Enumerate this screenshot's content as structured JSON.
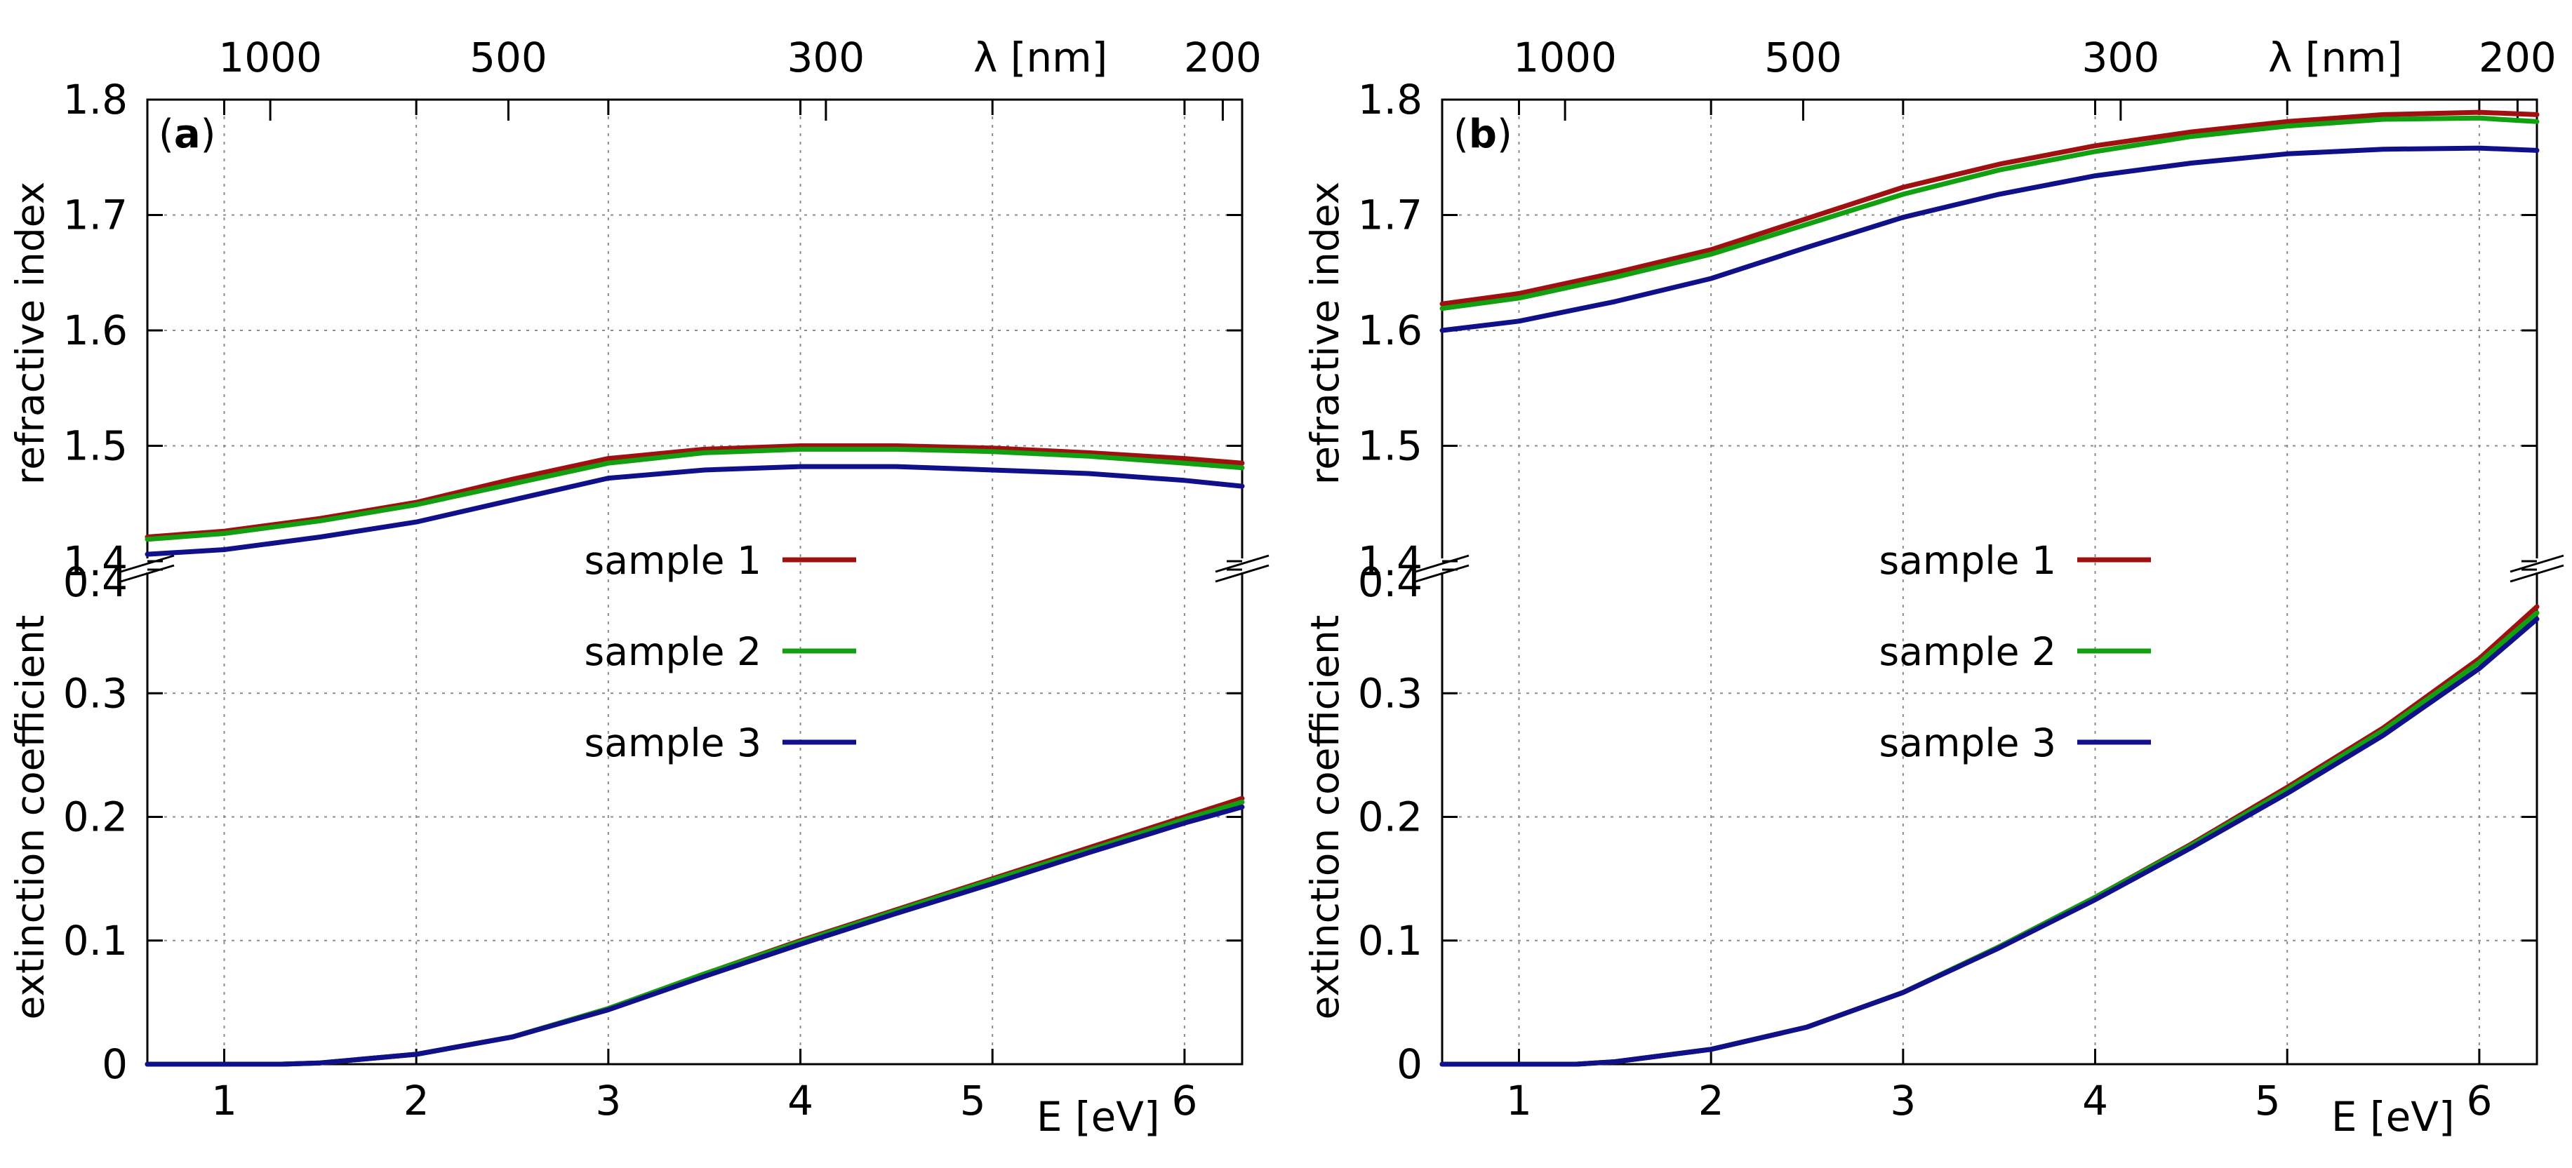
{
  "chart_data": [
    {
      "type": "line",
      "panel_label": "a",
      "xlabel": "E [eV]",
      "top_xlabel": "λ [nm]",
      "ylabel_upper": "refractive index",
      "ylabel_lower": "extinction coefficient",
      "xlim": [
        0.6,
        6.3
      ],
      "ylim_upper": [
        1.4,
        1.8
      ],
      "ylim_lower": [
        0,
        0.4
      ],
      "x_ticks": [
        "1",
        "2",
        "3",
        "4",
        "5",
        "6"
      ],
      "top_ticks": [
        "1000",
        "500",
        "300",
        "200"
      ],
      "y_ticks_upper": [
        "1.4",
        "1.5",
        "1.6",
        "1.7",
        "1.8"
      ],
      "y_ticks_lower": [
        "0",
        "0.1",
        "0.2",
        "0.3",
        "0.4"
      ],
      "legend": [
        "sample 1",
        "sample 2",
        "sample 3"
      ],
      "series_n": [
        {
          "name": "sample 1",
          "color": "#a01010",
          "x": [
            0.6,
            1,
            1.5,
            2,
            2.5,
            3,
            3.5,
            4,
            4.5,
            5,
            5.5,
            6,
            6.3
          ],
          "values": [
            1.421,
            1.426,
            1.437,
            1.451,
            1.471,
            1.489,
            1.497,
            1.5,
            1.5,
            1.498,
            1.494,
            1.489,
            1.485
          ]
        },
        {
          "name": "sample 2",
          "color": "#10a010",
          "x": [
            0.6,
            1,
            1.5,
            2,
            2.5,
            3,
            3.5,
            4,
            4.5,
            5,
            5.5,
            6,
            6.3
          ],
          "values": [
            1.419,
            1.424,
            1.435,
            1.449,
            1.467,
            1.485,
            1.494,
            1.497,
            1.497,
            1.495,
            1.491,
            1.485,
            1.481
          ]
        },
        {
          "name": "sample 3",
          "color": "#10108a",
          "x": [
            0.6,
            1,
            1.5,
            2,
            2.5,
            3,
            3.5,
            4,
            4.5,
            5,
            5.5,
            6,
            6.3
          ],
          "values": [
            1.406,
            1.41,
            1.421,
            1.434,
            1.453,
            1.472,
            1.479,
            1.482,
            1.482,
            1.479,
            1.476,
            1.47,
            1.465
          ]
        }
      ],
      "series_k": [
        {
          "name": "sample 1",
          "color": "#a01010",
          "x": [
            0.6,
            1,
            1.3,
            1.5,
            2,
            2.5,
            3,
            3.5,
            4,
            4.5,
            5,
            5.5,
            6,
            6.3
          ],
          "values": [
            0,
            0,
            0,
            0.001,
            0.008,
            0.022,
            0.045,
            0.073,
            0.1,
            0.125,
            0.15,
            0.175,
            0.2,
            0.215
          ]
        },
        {
          "name": "sample 2",
          "color": "#10a010",
          "x": [
            0.6,
            1,
            1.3,
            1.5,
            2,
            2.5,
            3,
            3.5,
            4,
            4.5,
            5,
            5.5,
            6,
            6.3
          ],
          "values": [
            0,
            0,
            0,
            0.001,
            0.008,
            0.022,
            0.045,
            0.073,
            0.099,
            0.124,
            0.149,
            0.173,
            0.198,
            0.212
          ]
        },
        {
          "name": "sample 3",
          "color": "#10108a",
          "x": [
            0.6,
            1,
            1.3,
            1.5,
            2,
            2.5,
            3,
            3.5,
            4,
            4.5,
            5,
            5.5,
            6,
            6.3
          ],
          "values": [
            0,
            0,
            0,
            0.001,
            0.008,
            0.022,
            0.044,
            0.071,
            0.097,
            0.122,
            0.146,
            0.171,
            0.195,
            0.208
          ]
        }
      ]
    },
    {
      "type": "line",
      "panel_label": "b",
      "xlabel": "E [eV]",
      "top_xlabel": "λ [nm]",
      "ylabel_upper": "refractive index",
      "ylabel_lower": "extinction coefficient",
      "xlim": [
        0.6,
        6.3
      ],
      "ylim_upper": [
        1.4,
        1.8
      ],
      "ylim_lower": [
        0,
        0.4
      ],
      "x_ticks": [
        "1",
        "2",
        "3",
        "4",
        "5",
        "6"
      ],
      "top_ticks": [
        "1000",
        "500",
        "300",
        "200"
      ],
      "y_ticks_upper": [
        "1.4",
        "1.5",
        "1.6",
        "1.7",
        "1.8"
      ],
      "y_ticks_lower": [
        "0",
        "0.1",
        "0.2",
        "0.3",
        "0.4"
      ],
      "legend": [
        "sample 1",
        "sample 2",
        "sample 3"
      ],
      "series_n": [
        {
          "name": "sample 1",
          "color": "#a01010",
          "x": [
            0.6,
            1,
            1.5,
            2,
            2.5,
            3,
            3.5,
            4,
            4.5,
            5,
            5.5,
            6,
            6.3
          ],
          "values": [
            1.623,
            1.632,
            1.65,
            1.67,
            1.697,
            1.724,
            1.744,
            1.76,
            1.772,
            1.781,
            1.787,
            1.789,
            1.787
          ]
        },
        {
          "name": "sample 2",
          "color": "#10a010",
          "x": [
            0.6,
            1,
            1.5,
            2,
            2.5,
            3,
            3.5,
            4,
            4.5,
            5,
            5.5,
            6,
            6.3
          ],
          "values": [
            1.619,
            1.628,
            1.646,
            1.666,
            1.692,
            1.718,
            1.739,
            1.755,
            1.768,
            1.777,
            1.783,
            1.784,
            1.781
          ]
        },
        {
          "name": "sample 3",
          "color": "#10108a",
          "x": [
            0.6,
            1,
            1.5,
            2,
            2.5,
            3,
            3.5,
            4,
            4.5,
            5,
            5.5,
            6,
            6.3
          ],
          "values": [
            1.6,
            1.608,
            1.625,
            1.645,
            1.672,
            1.698,
            1.718,
            1.734,
            1.745,
            1.753,
            1.757,
            1.758,
            1.756
          ]
        }
      ],
      "series_k": [
        {
          "name": "sample 1",
          "color": "#a01010",
          "x": [
            0.6,
            1,
            1.3,
            1.5,
            2,
            2.5,
            3,
            3.5,
            4,
            4.5,
            5,
            5.5,
            6,
            6.3
          ],
          "values": [
            0,
            0,
            0,
            0.002,
            0.012,
            0.03,
            0.058,
            0.095,
            0.135,
            0.178,
            0.224,
            0.272,
            0.328,
            0.37
          ]
        },
        {
          "name": "sample 2",
          "color": "#10a010",
          "x": [
            0.6,
            1,
            1.3,
            1.5,
            2,
            2.5,
            3,
            3.5,
            4,
            4.5,
            5,
            5.5,
            6,
            6.3
          ],
          "values": [
            0,
            0,
            0,
            0.002,
            0.012,
            0.03,
            0.058,
            0.095,
            0.135,
            0.177,
            0.222,
            0.27,
            0.325,
            0.365
          ]
        },
        {
          "name": "sample 3",
          "color": "#10108a",
          "x": [
            0.6,
            1,
            1.3,
            1.5,
            2,
            2.5,
            3,
            3.5,
            4,
            4.5,
            5,
            5.5,
            6,
            6.3
          ],
          "values": [
            0,
            0,
            0,
            0.002,
            0.012,
            0.03,
            0.058,
            0.094,
            0.133,
            0.175,
            0.219,
            0.266,
            0.32,
            0.36
          ]
        }
      ]
    }
  ]
}
